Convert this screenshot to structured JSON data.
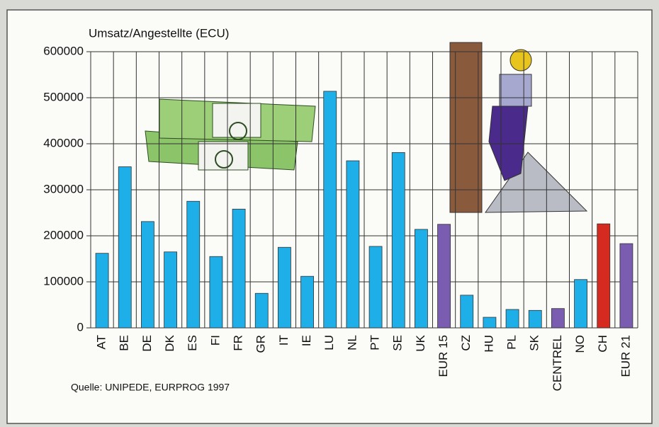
{
  "chart_data": {
    "type": "bar",
    "title": "Umsatz/Angestellte (ECU)",
    "source": "Quelle: UNIPEDE, EURPROG 1997",
    "categories": [
      "AT",
      "BE",
      "DE",
      "DK",
      "ES",
      "FI",
      "FR",
      "GR",
      "IT",
      "IE",
      "LU",
      "NL",
      "PT",
      "SE",
      "UK",
      "EUR 15",
      "CZ",
      "HU",
      "PL",
      "SK",
      "CENTREL",
      "NO",
      "CH",
      "EUR 21"
    ],
    "values": [
      162000,
      350000,
      231000,
      165000,
      275000,
      155000,
      258000,
      75000,
      175000,
      112000,
      514000,
      363000,
      177000,
      381000,
      214000,
      225000,
      71000,
      23000,
      40000,
      38000,
      42000,
      105000,
      226000,
      183000
    ],
    "colors": [
      "#1eaee8",
      "#1eaee8",
      "#1eaee8",
      "#1eaee8",
      "#1eaee8",
      "#1eaee8",
      "#1eaee8",
      "#1eaee8",
      "#1eaee8",
      "#1eaee8",
      "#1eaee8",
      "#1eaee8",
      "#1eaee8",
      "#1eaee8",
      "#1eaee8",
      "#7a5cb0",
      "#1eaee8",
      "#1eaee8",
      "#1eaee8",
      "#1eaee8",
      "#7a5cb0",
      "#1eaee8",
      "#d42a1f",
      "#7a5cb0"
    ],
    "ylim": [
      0,
      600000
    ],
    "yticks": [
      0,
      100000,
      200000,
      300000,
      400000,
      500000,
      600000
    ],
    "grid": true
  }
}
